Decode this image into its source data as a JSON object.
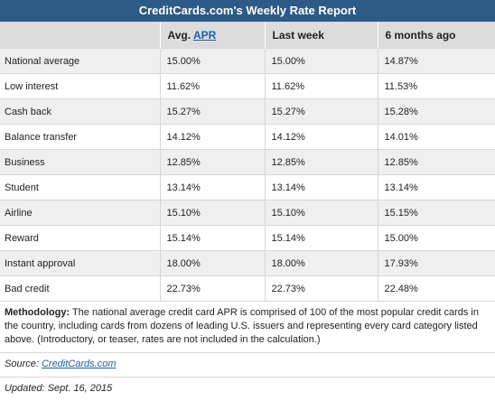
{
  "report": {
    "title": "CreditCards.com's Weekly Rate Report",
    "header": {
      "col1": "",
      "avg_prefix": "Avg. ",
      "avg_link": "APR",
      "last_week": "Last week",
      "six_months": "6 months ago"
    },
    "rows": [
      {
        "category": "National average",
        "avg": "15.00%",
        "last_week": "15.00%",
        "six_months": "14.87%"
      },
      {
        "category": "Low interest",
        "avg": "11.62%",
        "last_week": "11.62%",
        "six_months": "11.53%"
      },
      {
        "category": "Cash back",
        "avg": "15.27%",
        "last_week": "15.27%",
        "six_months": "15.28%"
      },
      {
        "category": "Balance transfer",
        "avg": "14.12%",
        "last_week": "14.12%",
        "six_months": "14.01%"
      },
      {
        "category": "Business",
        "avg": "12.85%",
        "last_week": "12.85%",
        "six_months": "12.85%"
      },
      {
        "category": "Student",
        "avg": "13.14%",
        "last_week": "13.14%",
        "six_months": "13.14%"
      },
      {
        "category": "Airline",
        "avg": "15.10%",
        "last_week": "15.10%",
        "six_months": "15.15%"
      },
      {
        "category": "Reward",
        "avg": "15.14%",
        "last_week": "15.14%",
        "six_months": "15.00%"
      },
      {
        "category": "Instant approval",
        "avg": "18.00%",
        "last_week": "18.00%",
        "six_months": "17.93%"
      },
      {
        "category": "Bad credit",
        "avg": "22.73%",
        "last_week": "22.73%",
        "six_months": "22.48%"
      }
    ],
    "methodology_label": "Methodology:",
    "methodology_text": " The national average credit card APR is comprised of 100 of the most popular credit cards in the country, including cards from dozens of leading U.S. issuers and representing every card category listed above. (Introductory, or teaser, rates are not included in the calculation.)",
    "source_label": "Source: ",
    "source_link": "CreditCards.com",
    "updated": "Updated: Sept. 16, 2015"
  },
  "colors": {
    "title_bg": "#2d5a86",
    "header_bg": "#dcdcdc",
    "stripe": "#efefef",
    "link": "#1f5ea8"
  }
}
